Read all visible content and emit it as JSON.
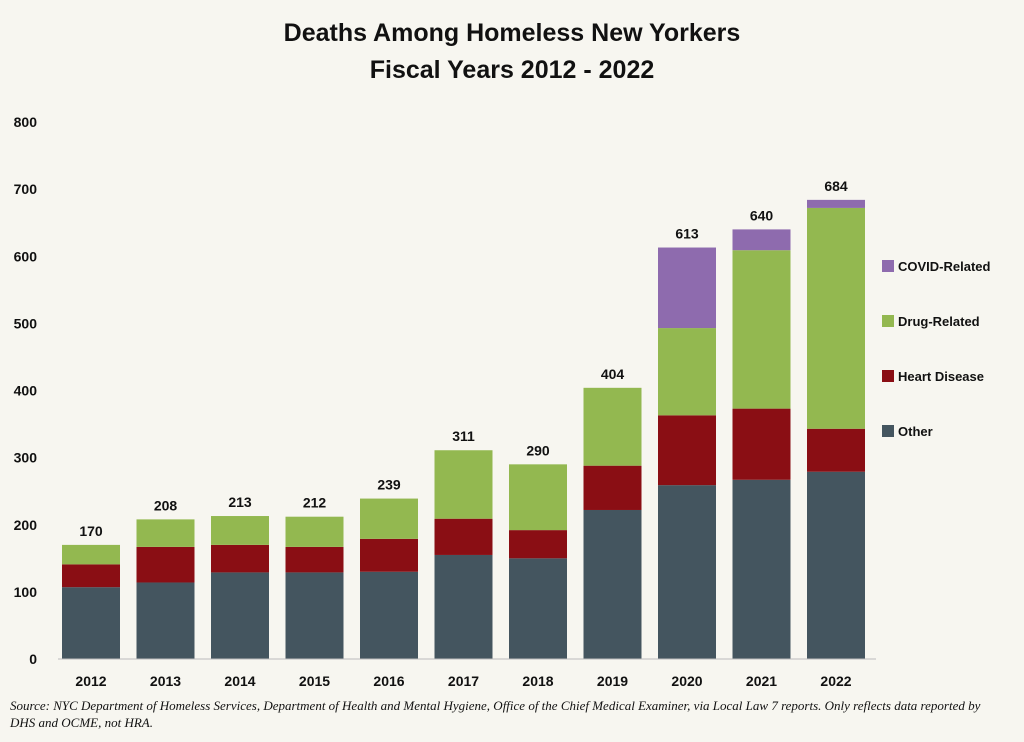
{
  "chart_data": {
    "type": "bar",
    "stacked": true,
    "title_lines": [
      "Deaths Among Homeless New Yorkers",
      "Fiscal Years 2012 - 2022"
    ],
    "categories": [
      "2012",
      "2013",
      "2014",
      "2015",
      "2016",
      "2017",
      "2018",
      "2019",
      "2020",
      "2021",
      "2022"
    ],
    "series": [
      {
        "name": "Other",
        "color": "#44555f",
        "values": [
          107,
          114,
          129,
          129,
          130,
          155,
          150,
          222,
          259,
          267,
          279
        ]
      },
      {
        "name": "Heart Disease",
        "color": "#8a0e14",
        "values": [
          34,
          53,
          41,
          38,
          49,
          54,
          42,
          66,
          104,
          106,
          64
        ]
      },
      {
        "name": "Drug-Related",
        "color": "#93b850",
        "values": [
          29,
          41,
          43,
          45,
          60,
          102,
          98,
          116,
          130,
          236,
          329
        ]
      },
      {
        "name": "COVID-Related",
        "color": "#8e6bae",
        "values": [
          0,
          0,
          0,
          0,
          0,
          0,
          0,
          0,
          120,
          31,
          12
        ]
      }
    ],
    "totals": [
      170,
      208,
      213,
      212,
      239,
      311,
      290,
      404,
      613,
      640,
      684
    ],
    "ylim": [
      0,
      800
    ],
    "yticks": [
      0,
      100,
      200,
      300,
      400,
      500,
      600,
      700,
      800
    ],
    "legend_order": [
      "COVID-Related",
      "Drug-Related",
      "Heart Disease",
      "Other"
    ],
    "legend_position": "right",
    "xlabel": "",
    "ylabel": "",
    "grid": false
  },
  "source_note": "Source: NYC Department of Homeless Services, Department of Health and Mental Hygiene, Office of the Chief Medical Examiner, via Local Law 7 reports. Only reflects data reported by DHS and OCME, not HRA."
}
